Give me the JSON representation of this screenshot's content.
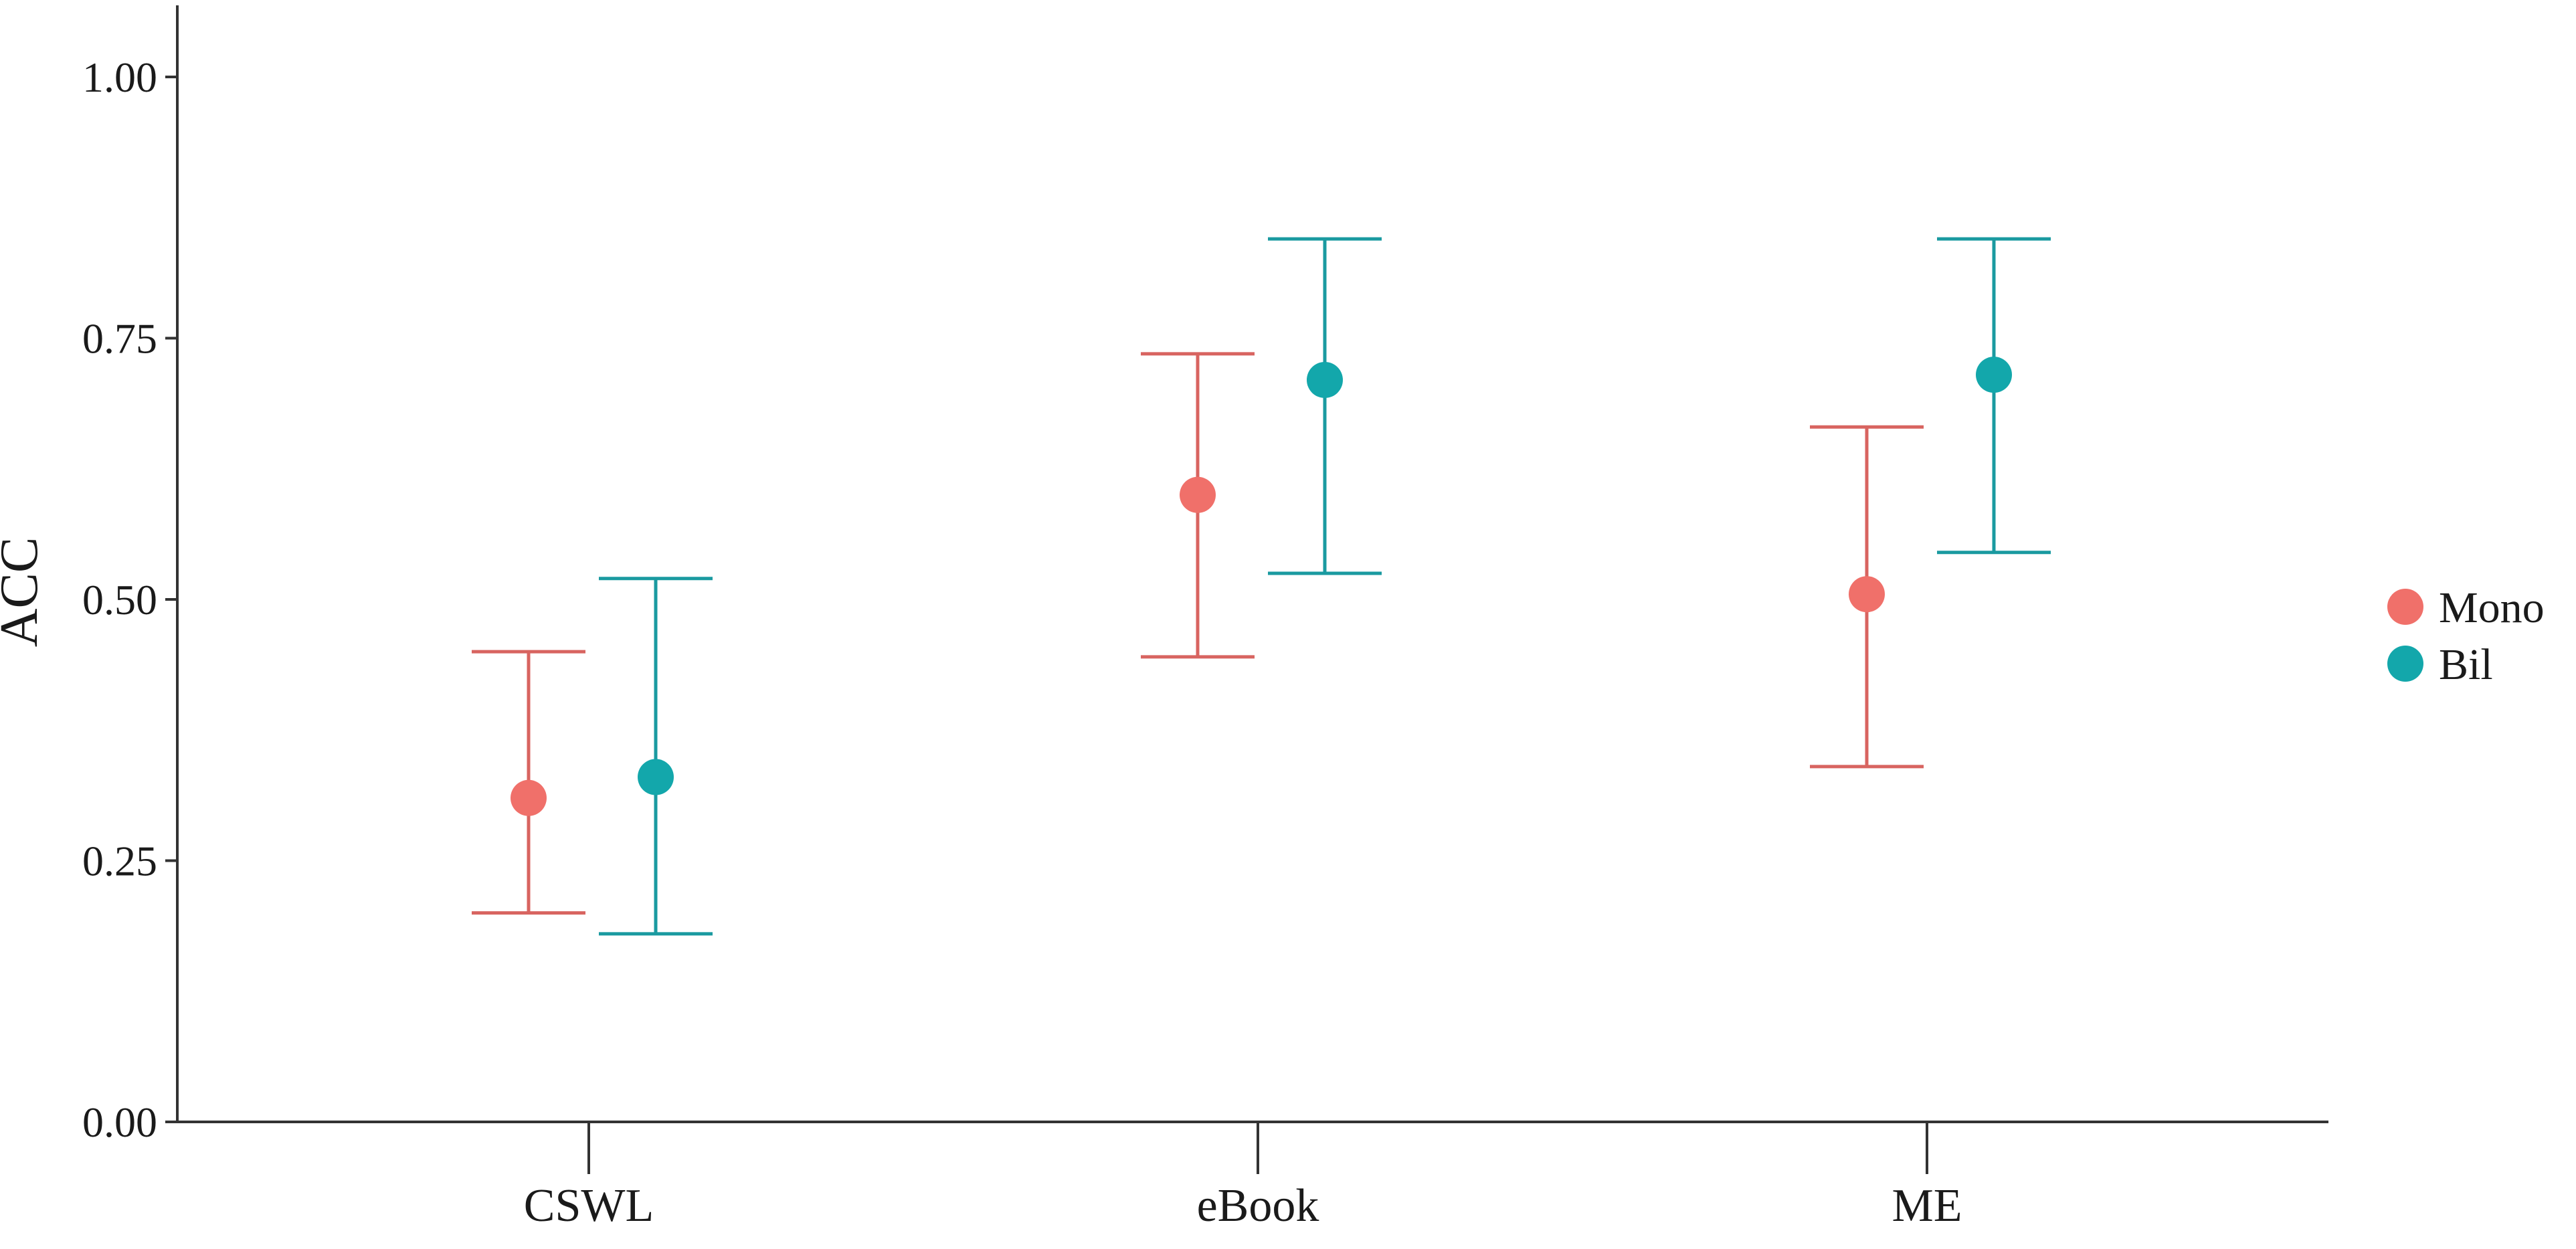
{
  "chart_data": {
    "type": "scatter",
    "subtype": "point-with-error-bars",
    "title": "",
    "xlabel": "",
    "ylabel": "ACC",
    "ylim": [
      0,
      1.05
    ],
    "yticks": [
      "0.00",
      "0.25",
      "0.50",
      "0.75",
      "1.00"
    ],
    "ytick_values": [
      0,
      0.25,
      0.5,
      0.75,
      1.0
    ],
    "categories": [
      "CSWL",
      "eBook",
      "ME"
    ],
    "grid": false,
    "legend": {
      "placement": "right",
      "entries": [
        "Mono",
        "Bil"
      ]
    },
    "series": [
      {
        "name": "Mono",
        "color": "#f0706a",
        "errorbar_color": "#d86460",
        "values": [
          0.31,
          0.6,
          0.505
        ],
        "lower": [
          0.2,
          0.445,
          0.34
        ],
        "upper": [
          0.45,
          0.735,
          0.665
        ]
      },
      {
        "name": "Bil",
        "color": "#13a7ab",
        "errorbar_color": "#1a9aa0",
        "values": [
          0.33,
          0.71,
          0.715
        ],
        "lower": [
          0.18,
          0.525,
          0.545
        ],
        "upper": [
          0.52,
          0.845,
          0.845
        ]
      }
    ]
  }
}
